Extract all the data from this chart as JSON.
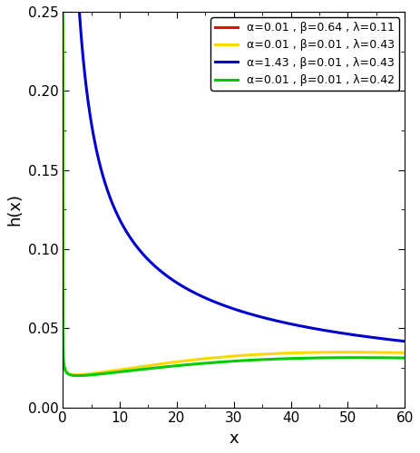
{
  "title": "",
  "xlabel": "x",
  "ylabel": "h(x)",
  "xlim": [
    0,
    60
  ],
  "ylim": [
    0,
    0.25
  ],
  "x_ticks": [
    0,
    10,
    20,
    30,
    40,
    50,
    60
  ],
  "y_ticks": [
    0.0,
    0.05,
    0.1,
    0.15,
    0.2,
    0.25
  ],
  "series": [
    {
      "alpha": 0.01,
      "beta": 0.64,
      "lam": 0.11,
      "color": "#FF0000",
      "label": "α=0.01 , β=0.64 , λ=0.11"
    },
    {
      "alpha": 0.01,
      "beta": 0.01,
      "lam": 0.43,
      "color": "#FFD700",
      "label": "α=0.01 , β=0.01 , λ=0.43"
    },
    {
      "alpha": 1.43,
      "beta": 0.01,
      "lam": 0.43,
      "color": "#0000CD",
      "label": "α=1.43 , β=0.01 , λ=0.43"
    },
    {
      "alpha": 0.01,
      "beta": 0.01,
      "lam": 0.42,
      "color": "#00CC00",
      "label": "α=0.01 , β=0.01 , λ=0.42"
    }
  ],
  "background_color": "#FFFFFF",
  "linewidth": 2.2,
  "legend_fontsize": 9,
  "axis_fontsize": 13,
  "tick_fontsize": 11
}
